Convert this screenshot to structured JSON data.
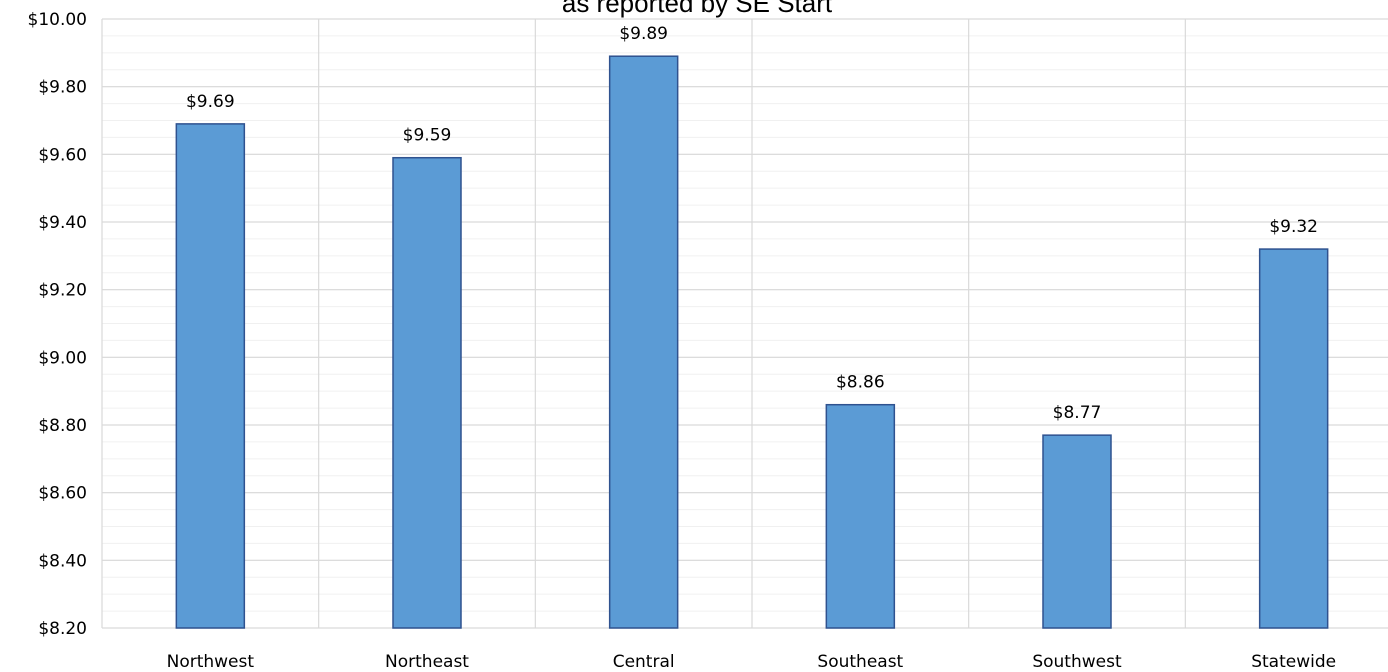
{
  "chart_data": {
    "type": "bar",
    "title": "as reported by SE Start",
    "categories": [
      "Northwest",
      "Northeast",
      "Central",
      "Southeast",
      "Southwest",
      "Statewide"
    ],
    "values": [
      9.69,
      9.59,
      9.89,
      8.86,
      8.77,
      9.32
    ],
    "data_labels": [
      "$9.69",
      "$9.59",
      "$9.89",
      "$8.86",
      "$8.77",
      "$9.32"
    ],
    "ylim": [
      8.2,
      10.0
    ],
    "yticks": [
      8.2,
      8.4,
      8.6,
      8.8,
      9.0,
      9.2,
      9.4,
      9.6,
      9.8,
      10.0
    ],
    "ytick_labels": [
      "$8.20",
      "$8.40",
      "$8.60",
      "$8.80",
      "$9.00",
      "$9.20",
      "$9.40",
      "$9.60",
      "$9.80",
      "$10.00"
    ],
    "minor_gridline_step": 0.05,
    "grid": true,
    "colors": {
      "bar_fill": "#5b9bd5",
      "bar_stroke": "#2f528f",
      "major_grid": "#d9d9d9",
      "minor_grid": "#f0f0f0"
    }
  }
}
